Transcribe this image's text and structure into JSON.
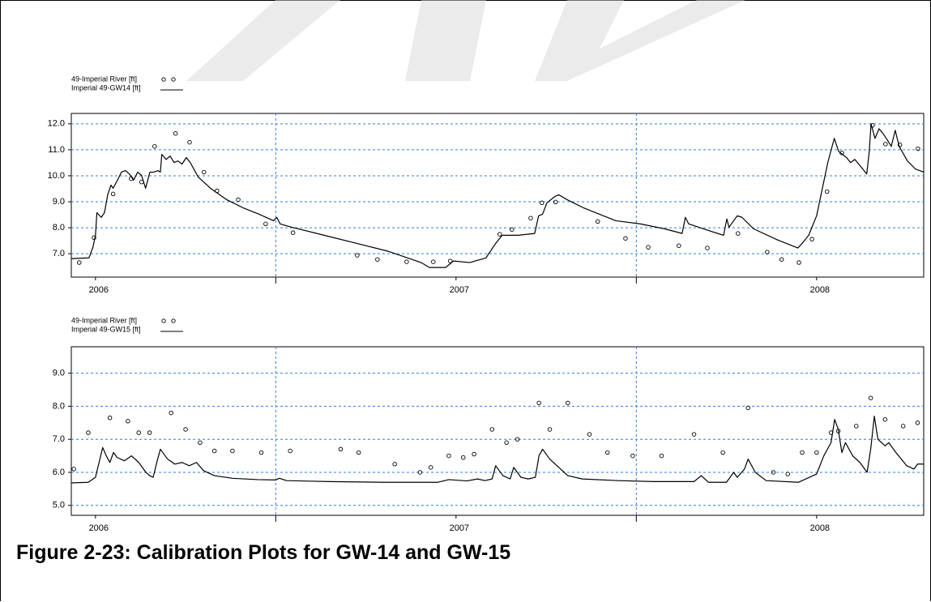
{
  "chart_data": [
    {
      "type": "line",
      "xlim": [
        2005.933,
        2008.297
      ],
      "xticks": [
        2006,
        2007,
        2008
      ],
      "xgrid": [
        2006.5,
        2007.5
      ],
      "ylim": [
        6.1,
        12.4
      ],
      "yticks": [
        {
          "value": 7,
          "label": "7.0"
        },
        {
          "value": 8,
          "label": "8.0"
        },
        {
          "value": 9,
          "label": "9.0"
        },
        {
          "value": 10,
          "label": "10.0"
        },
        {
          "value": 11,
          "label": "11.0"
        },
        {
          "value": 12,
          "label": "12.0"
        }
      ],
      "grid": true,
      "grid_color": "#2f7fe0",
      "legend": "top-left",
      "series": [
        {
          "name": "49-Imperial River  [ft]",
          "mode": "markers",
          "color": "#000000",
          "x": [
            2005.955,
            2005.996,
            2006.049,
            2006.099,
            2006.128,
            2006.164,
            2006.222,
            2006.261,
            2006.301,
            2006.337,
            2006.396,
            2006.472,
            2006.548,
            2006.726,
            2006.782,
            2006.863,
            2006.937,
            2006.984,
            2007.121,
            2007.155,
            2007.207,
            2007.238,
            2007.276,
            2007.393,
            2007.47,
            2007.533,
            2007.618,
            2007.697,
            2007.782,
            2007.863,
            2007.903,
            2007.951,
            2007.987,
            2008.029,
            2008.07,
            2008.155,
            2008.191,
            2008.231,
            2008.281
          ],
          "values": [
            6.66,
            7.62,
            9.3,
            9.89,
            9.76,
            11.13,
            11.63,
            11.29,
            10.14,
            9.42,
            9.08,
            8.15,
            7.81,
            6.94,
            6.78,
            6.69,
            6.69,
            6.72,
            7.75,
            7.93,
            8.37,
            8.96,
            8.99,
            8.24,
            7.59,
            7.25,
            7.31,
            7.22,
            7.78,
            7.06,
            6.78,
            6.66,
            7.56,
            9.39,
            10.88,
            11.94,
            11.22,
            11.19,
            11.04
          ]
        },
        {
          "name": "Imperial 49-GW14 [ft]",
          "mode": "line",
          "color": "#000000",
          "x": [
            2005.933,
            2005.982,
            2005.993,
            2006.0,
            2006.004,
            2006.016,
            2006.025,
            2006.034,
            2006.043,
            2006.049,
            2006.061,
            2006.072,
            2006.083,
            2006.094,
            2006.106,
            2006.117,
            2006.128,
            2006.139,
            2006.151,
            2006.162,
            2006.173,
            2006.18,
            2006.184,
            2006.196,
            2006.207,
            2006.218,
            2006.229,
            2006.24,
            2006.252,
            2006.263,
            2006.285,
            2006.319,
            2006.364,
            2006.409,
            2006.454,
            2006.494,
            2006.503,
            2006.512,
            2006.544,
            2006.634,
            2006.724,
            2006.813,
            2006.903,
            2006.926,
            2006.971,
            2006.993,
            2007.038,
            2007.083,
            2007.11,
            2007.128,
            2007.173,
            2007.218,
            2007.229,
            2007.24,
            2007.252,
            2007.274,
            2007.285,
            2007.308,
            2007.353,
            2007.398,
            2007.443,
            2007.51,
            2007.578,
            2007.627,
            2007.636,
            2007.645,
            2007.712,
            2007.742,
            2007.751,
            2007.757,
            2007.78,
            2007.793,
            2007.825,
            2007.892,
            2007.948,
            2007.96,
            2007.978,
            2008.0,
            2008.016,
            2008.031,
            2008.049,
            2008.061,
            2008.083,
            2008.094,
            2008.106,
            2008.128,
            2008.139,
            2008.146,
            2008.151,
            2008.162,
            2008.173,
            2008.184,
            2008.196,
            2008.207,
            2008.218,
            2008.229,
            2008.252,
            2008.274,
            2008.297
          ],
          "values": [
            6.81,
            6.84,
            7.25,
            7.71,
            8.58,
            8.4,
            8.58,
            9.27,
            9.64,
            9.52,
            9.83,
            10.14,
            10.2,
            10.07,
            9.83,
            10.14,
            10.01,
            9.52,
            10.14,
            10.14,
            10.2,
            10.14,
            10.82,
            10.63,
            10.76,
            10.51,
            10.57,
            10.45,
            10.7,
            10.51,
            9.95,
            9.52,
            9.08,
            8.77,
            8.52,
            8.27,
            8.4,
            8.15,
            8.02,
            7.71,
            7.4,
            7.09,
            6.66,
            6.47,
            6.47,
            6.72,
            6.66,
            6.84,
            7.4,
            7.71,
            7.71,
            7.78,
            8.46,
            8.52,
            8.96,
            9.2,
            9.27,
            9.08,
            8.77,
            8.52,
            8.27,
            8.15,
            7.96,
            7.78,
            8.4,
            8.15,
            7.84,
            7.71,
            8.34,
            8.02,
            8.46,
            8.4,
            7.96,
            7.53,
            7.22,
            7.4,
            7.71,
            8.46,
            9.52,
            10.51,
            11.44,
            10.94,
            10.7,
            10.51,
            10.63,
            10.26,
            10.07,
            10.94,
            12.0,
            11.44,
            11.81,
            11.63,
            11.38,
            11.13,
            11.75,
            11.13,
            10.57,
            10.26,
            10.14
          ]
        }
      ]
    },
    {
      "type": "line",
      "xlim": [
        2005.933,
        2008.297
      ],
      "xticks": [
        2006,
        2007,
        2008
      ],
      "xgrid": [
        2006.5,
        2007.5
      ],
      "ylim": [
        4.7,
        9.8
      ],
      "yticks": [
        {
          "value": 5,
          "label": "5.0"
        },
        {
          "value": 6,
          "label": "6.0"
        },
        {
          "value": 7,
          "label": "7.0"
        },
        {
          "value": 8,
          "label": "8.0"
        },
        {
          "value": 9,
          "label": "9.0"
        }
      ],
      "grid": true,
      "grid_color": "#2f7fe0",
      "legend": "top-left",
      "series": [
        {
          "name": "49-Imperial River  [ft]",
          "mode": "markers",
          "color": "#000000",
          "x": [
            2005.94,
            2005.98,
            2006.04,
            2006.09,
            2006.12,
            2006.15,
            2006.21,
            2006.25,
            2006.29,
            2006.33,
            2006.38,
            2006.46,
            2006.54,
            2006.68,
            2006.73,
            2006.83,
            2006.9,
            2006.93,
            2006.98,
            2007.02,
            2007.05,
            2007.1,
            2007.14,
            2007.17,
            2007.23,
            2007.26,
            2007.31,
            2007.37,
            2007.42,
            2007.49,
            2007.57,
            2007.66,
            2007.74,
            2007.81,
            2007.88,
            2007.92,
            2007.96,
            2008.0,
            2008.04,
            2008.06,
            2008.11,
            2008.15,
            2008.19,
            2008.24,
            2008.28
          ],
          "values": [
            6.1,
            7.2,
            7.65,
            7.55,
            7.2,
            7.2,
            7.8,
            7.3,
            6.9,
            6.65,
            6.65,
            6.6,
            6.65,
            6.7,
            6.6,
            6.25,
            6.0,
            6.15,
            6.5,
            6.45,
            6.55,
            7.3,
            6.9,
            7.0,
            8.1,
            7.3,
            8.1,
            7.15,
            6.6,
            6.5,
            6.5,
            7.15,
            6.6,
            7.95,
            6.0,
            5.95,
            6.6,
            6.6,
            7.2,
            7.25,
            7.4,
            8.25,
            7.6,
            7.4,
            7.5
          ]
        },
        {
          "name": "Imperial 49-GW15 [ft]",
          "mode": "line",
          "color": "#000000",
          "x": [
            2005.933,
            2005.98,
            2006.0,
            2006.01,
            2006.02,
            2006.03,
            2006.04,
            2006.05,
            2006.06,
            2006.08,
            2006.1,
            2006.12,
            2006.14,
            2006.15,
            2006.16,
            2006.17,
            2006.18,
            2006.2,
            2006.22,
            2006.24,
            2006.26,
            2006.28,
            2006.3,
            2006.33,
            2006.38,
            2006.45,
            2006.5,
            2006.51,
            2006.53,
            2006.65,
            2006.8,
            2006.95,
            2006.98,
            2007.03,
            2007.06,
            2007.08,
            2007.1,
            2007.11,
            2007.13,
            2007.15,
            2007.16,
            2007.18,
            2007.2,
            2007.22,
            2007.23,
            2007.24,
            2007.26,
            2007.28,
            2007.31,
            2007.35,
            2007.45,
            2007.55,
            2007.66,
            2007.68,
            2007.7,
            2007.75,
            2007.77,
            2007.78,
            2007.8,
            2007.81,
            2007.83,
            2007.86,
            2007.95,
            2007.98,
            2008.0,
            2008.02,
            2008.04,
            2008.05,
            2008.06,
            2008.07,
            2008.08,
            2008.1,
            2008.12,
            2008.14,
            2008.15,
            2008.16,
            2008.17,
            2008.19,
            2008.2,
            2008.22,
            2008.25,
            2008.27,
            2008.28,
            2008.297
          ],
          "values": [
            5.68,
            5.7,
            5.85,
            6.3,
            6.75,
            6.5,
            6.3,
            6.6,
            6.45,
            6.35,
            6.5,
            6.3,
            6.0,
            5.9,
            5.85,
            6.3,
            6.7,
            6.4,
            6.25,
            6.3,
            6.2,
            6.3,
            6.05,
            5.9,
            5.82,
            5.78,
            5.77,
            5.82,
            5.75,
            5.72,
            5.7,
            5.7,
            5.78,
            5.74,
            5.8,
            5.75,
            5.8,
            6.2,
            5.9,
            5.8,
            6.15,
            5.85,
            5.8,
            5.85,
            6.5,
            6.7,
            6.4,
            6.2,
            5.9,
            5.8,
            5.75,
            5.72,
            5.72,
            5.9,
            5.7,
            5.7,
            6.0,
            5.85,
            6.1,
            6.4,
            6.0,
            5.75,
            5.7,
            5.85,
            5.95,
            6.5,
            6.9,
            7.6,
            7.3,
            6.6,
            6.9,
            6.5,
            6.3,
            6.0,
            6.7,
            7.7,
            7.0,
            6.8,
            6.9,
            6.6,
            6.2,
            6.1,
            6.25,
            6.25
          ]
        }
      ]
    }
  ],
  "caption": "Figure 2-23: Calibration Plots for GW-14 and GW-15"
}
